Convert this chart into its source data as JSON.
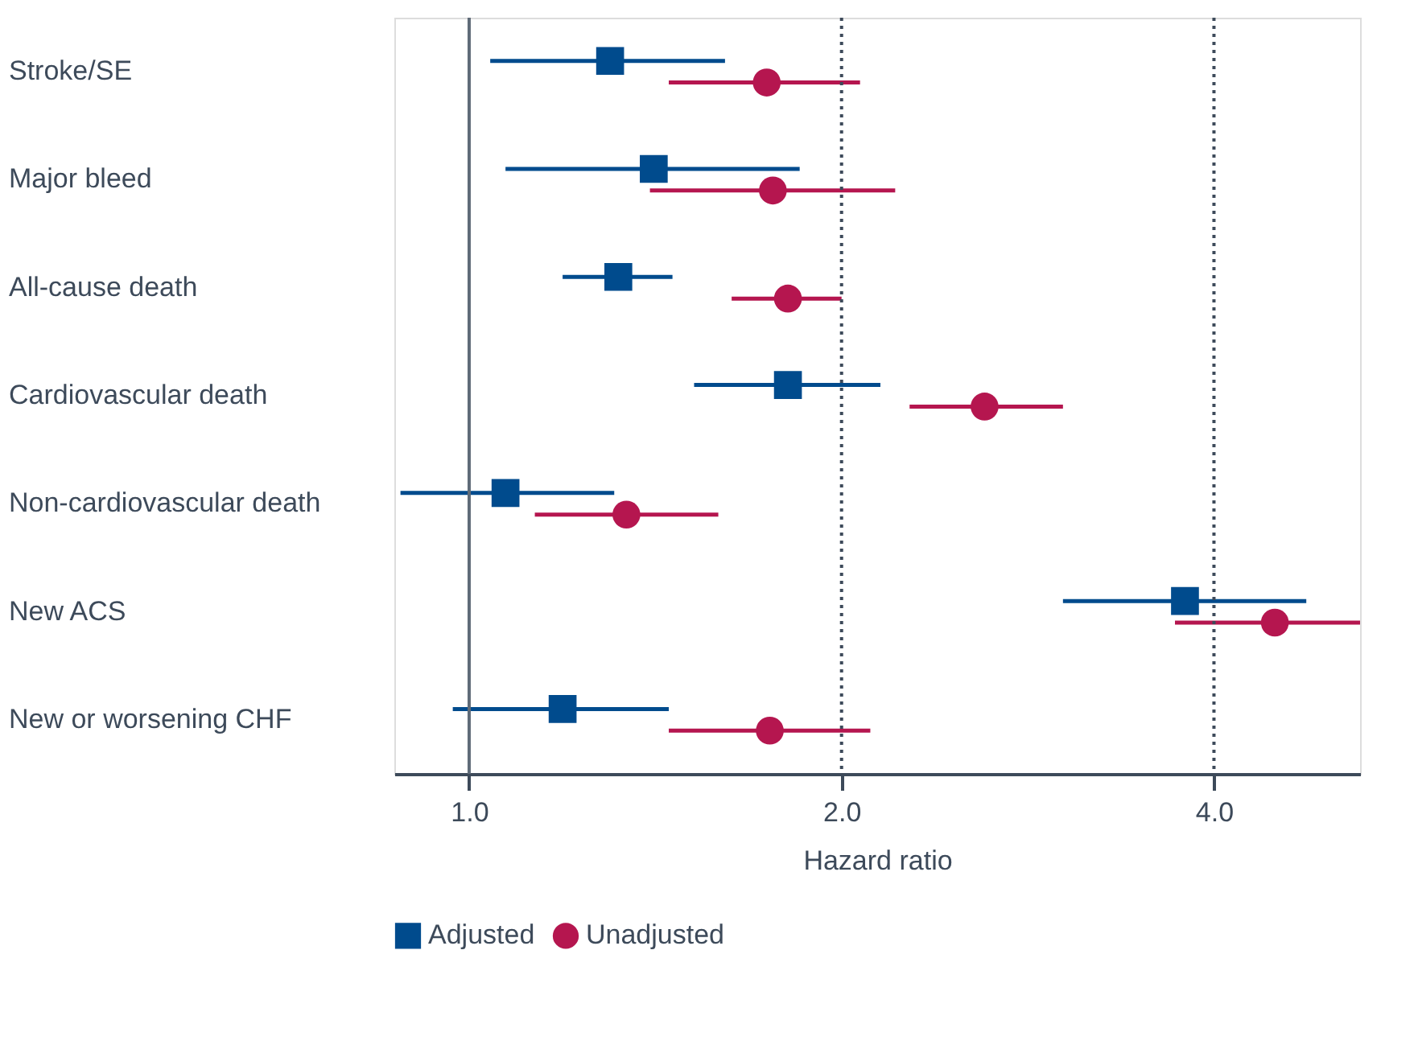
{
  "chart_data": {
    "type": "scatter",
    "orientation": "horizontal",
    "xlabel": "Hazard ratio",
    "log": "x",
    "grid": false,
    "legend": "bottom",
    "categories": [
      "Stroke/SE",
      "Major bleed",
      "All-cause death",
      "Cardiovascular death",
      "Non-cardiovascular death",
      "New ACS",
      "New or worsening CHF"
    ],
    "xlim": [
      0.87,
      5.25
    ],
    "xticks": [
      {
        "value": 1,
        "label": "1.0"
      },
      {
        "value": 2,
        "label": "2.0"
      },
      {
        "value": 4,
        "label": "4.0"
      }
    ],
    "series": [
      {
        "name": "Adjusted",
        "color": "#004b8d",
        "marker": "square",
        "values": [
          1.3,
          1.41,
          1.32,
          1.81,
          1.07,
          3.79,
          1.19
        ],
        "errors": [
          [
            1.04,
            1.61
          ],
          [
            1.07,
            1.85
          ],
          [
            1.19,
            1.46
          ],
          [
            1.52,
            2.15
          ],
          [
            0.88,
            1.31
          ],
          [
            3.02,
            4.75
          ],
          [
            0.97,
            1.45
          ]
        ]
      },
      {
        "name": "Unadjusted",
        "color": "#b5164f",
        "marker": "circle",
        "values": [
          1.74,
          1.76,
          1.81,
          2.61,
          1.34,
          4.48,
          1.75
        ],
        "errors": [
          [
            1.45,
            2.07
          ],
          [
            1.4,
            2.21
          ],
          [
            1.63,
            2.0
          ],
          [
            2.27,
            3.02
          ],
          [
            1.13,
            1.59
          ],
          [
            3.72,
            5.25
          ],
          [
            1.45,
            2.11
          ]
        ]
      }
    ],
    "ref_lines": [
      {
        "axis": "x",
        "value": 1,
        "color": "#5f6b78",
        "line_style": "solid"
      },
      {
        "axis": "x",
        "value": 2,
        "color": "#3d4a5a",
        "line_style": "dotted"
      },
      {
        "axis": "x",
        "value": 4,
        "color": "#3d4a5a",
        "line_style": "dotted"
      }
    ]
  }
}
